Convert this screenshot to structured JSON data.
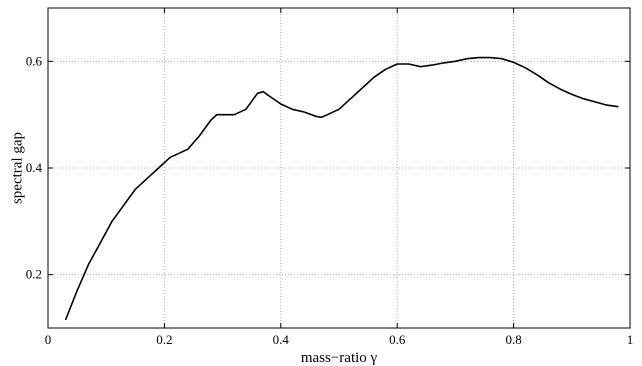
{
  "chart_data": {
    "type": "line",
    "title": "",
    "xlabel": "mass−ratio γ",
    "ylabel": "spectral gap",
    "xlim": [
      0,
      1
    ],
    "ylim": [
      0.1,
      0.7
    ],
    "grid": true,
    "x_ticks": [
      0,
      0.2,
      0.4,
      0.6,
      0.8,
      1
    ],
    "x_tick_labels": [
      "0",
      "0.2",
      "0.4",
      "0.6",
      "0.8",
      "1"
    ],
    "y_ticks": [
      0.2,
      0.4,
      0.6
    ],
    "y_tick_labels": [
      "0.2",
      "0.4",
      "0.6"
    ],
    "series": [
      {
        "color": "#000000",
        "x": [
          0.03,
          0.05,
          0.07,
          0.09,
          0.11,
          0.13,
          0.15,
          0.17,
          0.19,
          0.21,
          0.22,
          0.24,
          0.26,
          0.28,
          0.29,
          0.3,
          0.32,
          0.34,
          0.36,
          0.37,
          0.38,
          0.4,
          0.42,
          0.44,
          0.46,
          0.47,
          0.48,
          0.5,
          0.52,
          0.54,
          0.56,
          0.58,
          0.6,
          0.62,
          0.64,
          0.66,
          0.68,
          0.7,
          0.72,
          0.74,
          0.76,
          0.78,
          0.8,
          0.82,
          0.84,
          0.86,
          0.88,
          0.9,
          0.92,
          0.94,
          0.96,
          0.98
        ],
        "y": [
          0.115,
          0.17,
          0.22,
          0.26,
          0.3,
          0.33,
          0.36,
          0.38,
          0.4,
          0.42,
          0.425,
          0.435,
          0.46,
          0.49,
          0.5,
          0.5,
          0.5,
          0.51,
          0.54,
          0.543,
          0.535,
          0.52,
          0.51,
          0.505,
          0.497,
          0.495,
          0.5,
          0.51,
          0.53,
          0.55,
          0.57,
          0.585,
          0.595,
          0.595,
          0.59,
          0.593,
          0.597,
          0.6,
          0.605,
          0.607,
          0.607,
          0.605,
          0.598,
          0.588,
          0.575,
          0.56,
          0.548,
          0.538,
          0.53,
          0.524,
          0.518,
          0.515
        ]
      }
    ]
  }
}
